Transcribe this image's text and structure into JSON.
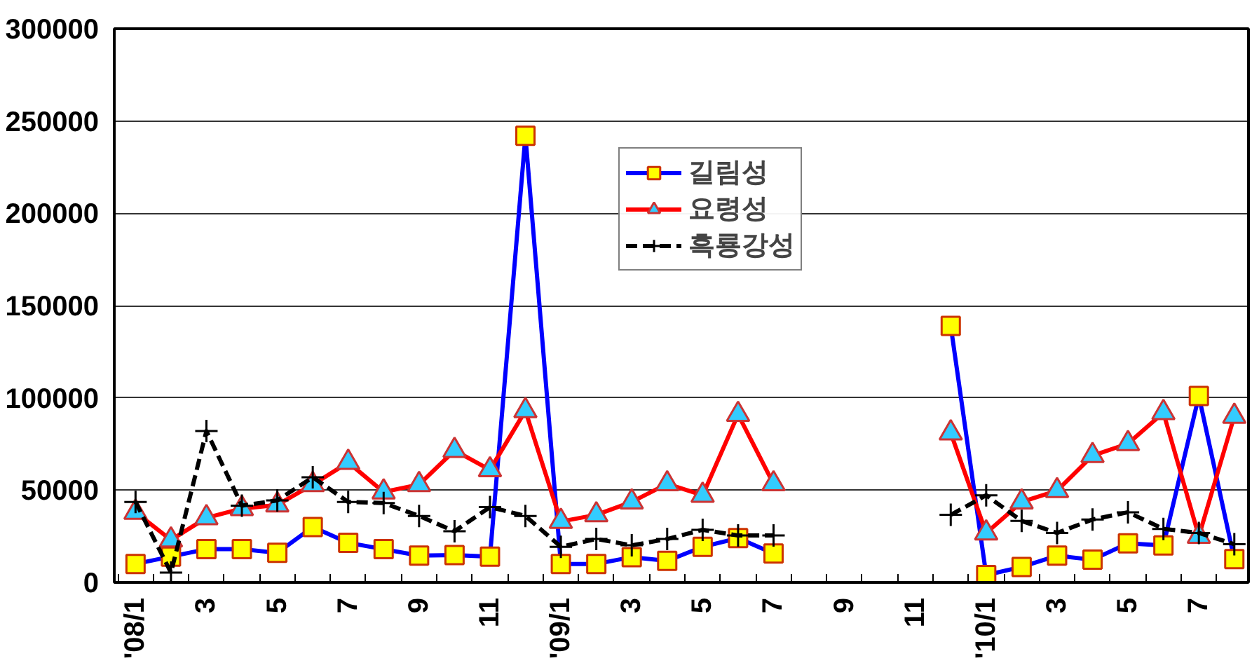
{
  "chart_data": {
    "type": "line",
    "categories": [
      "'08/1",
      null,
      "3",
      null,
      "5",
      null,
      "7",
      null,
      "9",
      null,
      "11",
      null,
      "'09/1",
      null,
      "3",
      null,
      "5",
      null,
      "7",
      null,
      "9",
      null,
      "11",
      null,
      "'10/1",
      null,
      "3",
      null,
      "5",
      null,
      "7",
      null
    ],
    "series": [
      {
        "name": "길림성",
        "color": "#0000ff",
        "marker": "square",
        "line_style": "solid",
        "values": [
          10000,
          14000,
          18000,
          18000,
          16000,
          30000,
          21500,
          18000,
          14500,
          14800,
          14000,
          242000,
          10000,
          10000,
          13700,
          11700,
          19300,
          24000,
          15700,
          null,
          null,
          null,
          null,
          139000,
          4000,
          8400,
          14500,
          12300,
          21200,
          20000,
          101000,
          12600
        ]
      },
      {
        "name": "요령성",
        "color": "#ff0000",
        "marker": "triangle",
        "line_style": "solid",
        "values": [
          38000,
          23000,
          35000,
          40000,
          42000,
          53000,
          65000,
          49000,
          53000,
          71500,
          61000,
          93000,
          33000,
          36600,
          43600,
          53400,
          47200,
          91000,
          53400,
          null,
          null,
          null,
          null,
          81000,
          26800,
          43600,
          49700,
          68700,
          75200,
          92000,
          25000,
          90000
        ]
      },
      {
        "name": "흑룡강성",
        "color": "#000000",
        "marker": "cross",
        "line_style": "dashed",
        "values": [
          43600,
          5300,
          82000,
          41600,
          44400,
          57000,
          43600,
          43000,
          36000,
          27700,
          40800,
          36000,
          19300,
          23500,
          20100,
          23500,
          28500,
          25400,
          25400,
          null,
          null,
          null,
          null,
          36600,
          47200,
          33300,
          26800,
          34100,
          38000,
          29000,
          26800,
          20700
        ]
      }
    ],
    "ylim": [
      0,
      300000
    ],
    "yticks": [
      0,
      50000,
      100000,
      150000,
      200000,
      250000,
      300000
    ],
    "grid": "y",
    "legend": "top right"
  }
}
